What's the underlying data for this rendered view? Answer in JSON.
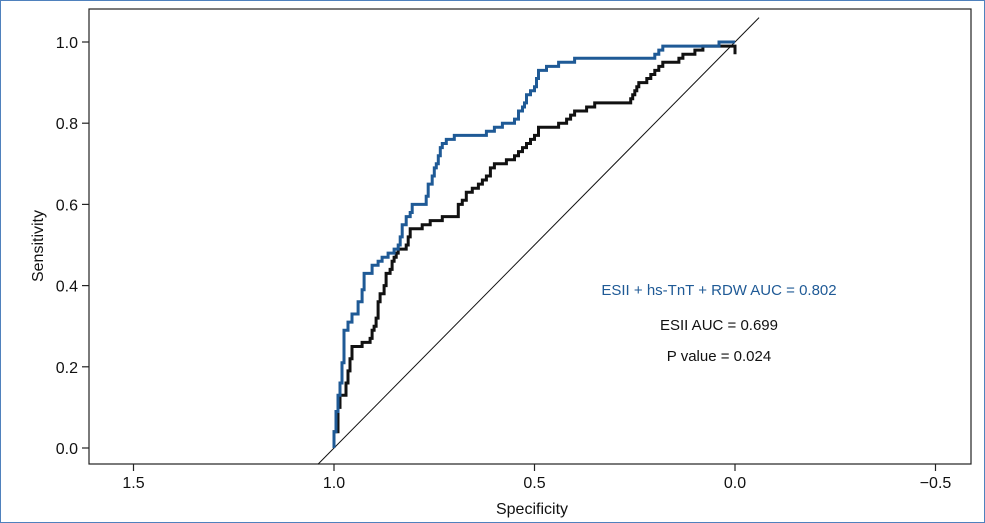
{
  "chart_data": {
    "type": "line",
    "xlabel": "Specificity",
    "ylabel": "Sensitivity",
    "xlim": [
      1.5,
      -0.5
    ],
    "ylim": [
      0.0,
      1.0
    ],
    "x_ticks": [
      1.5,
      1.0,
      0.5,
      0.0,
      -0.5
    ],
    "x_tick_labels": [
      "1.5",
      "1.0",
      "0.5",
      "0.0",
      "−0.5"
    ],
    "y_ticks": [
      0.0,
      0.2,
      0.4,
      0.6,
      0.8,
      1.0
    ],
    "y_tick_labels": [
      "0.0",
      "0.2",
      "0.4",
      "0.6",
      "0.8",
      "1.0"
    ],
    "grid": false,
    "series": [
      {
        "color": "#1f5a96",
        "points": [
          [
            1.0,
            0.0
          ],
          [
            1.0,
            0.04
          ],
          [
            0.995,
            0.04
          ],
          [
            0.995,
            0.09
          ],
          [
            0.99,
            0.09
          ],
          [
            0.99,
            0.13
          ],
          [
            0.985,
            0.13
          ],
          [
            0.985,
            0.16
          ],
          [
            0.98,
            0.16
          ],
          [
            0.98,
            0.21
          ],
          [
            0.975,
            0.21
          ],
          [
            0.975,
            0.29
          ],
          [
            0.965,
            0.29
          ],
          [
            0.965,
            0.31
          ],
          [
            0.955,
            0.31
          ],
          [
            0.955,
            0.33
          ],
          [
            0.94,
            0.33
          ],
          [
            0.94,
            0.36
          ],
          [
            0.93,
            0.36
          ],
          [
            0.93,
            0.39
          ],
          [
            0.925,
            0.39
          ],
          [
            0.925,
            0.43
          ],
          [
            0.905,
            0.43
          ],
          [
            0.905,
            0.45
          ],
          [
            0.89,
            0.45
          ],
          [
            0.89,
            0.46
          ],
          [
            0.88,
            0.46
          ],
          [
            0.88,
            0.47
          ],
          [
            0.865,
            0.47
          ],
          [
            0.865,
            0.48
          ],
          [
            0.85,
            0.48
          ],
          [
            0.85,
            0.49
          ],
          [
            0.84,
            0.49
          ],
          [
            0.84,
            0.5
          ],
          [
            0.835,
            0.5
          ],
          [
            0.835,
            0.52
          ],
          [
            0.83,
            0.52
          ],
          [
            0.83,
            0.55
          ],
          [
            0.82,
            0.55
          ],
          [
            0.82,
            0.57
          ],
          [
            0.81,
            0.57
          ],
          [
            0.81,
            0.58
          ],
          [
            0.805,
            0.58
          ],
          [
            0.805,
            0.6
          ],
          [
            0.77,
            0.6
          ],
          [
            0.77,
            0.62
          ],
          [
            0.765,
            0.62
          ],
          [
            0.765,
            0.65
          ],
          [
            0.755,
            0.65
          ],
          [
            0.755,
            0.67
          ],
          [
            0.75,
            0.67
          ],
          [
            0.75,
            0.69
          ],
          [
            0.745,
            0.69
          ],
          [
            0.745,
            0.7
          ],
          [
            0.74,
            0.7
          ],
          [
            0.74,
            0.72
          ],
          [
            0.735,
            0.72
          ],
          [
            0.735,
            0.74
          ],
          [
            0.73,
            0.74
          ],
          [
            0.73,
            0.75
          ],
          [
            0.72,
            0.75
          ],
          [
            0.72,
            0.76
          ],
          [
            0.7,
            0.76
          ],
          [
            0.7,
            0.77
          ],
          [
            0.62,
            0.77
          ],
          [
            0.62,
            0.78
          ],
          [
            0.6,
            0.78
          ],
          [
            0.6,
            0.79
          ],
          [
            0.58,
            0.79
          ],
          [
            0.58,
            0.8
          ],
          [
            0.55,
            0.8
          ],
          [
            0.55,
            0.81
          ],
          [
            0.54,
            0.81
          ],
          [
            0.54,
            0.83
          ],
          [
            0.53,
            0.83
          ],
          [
            0.53,
            0.84
          ],
          [
            0.525,
            0.84
          ],
          [
            0.525,
            0.85
          ],
          [
            0.52,
            0.85
          ],
          [
            0.52,
            0.87
          ],
          [
            0.51,
            0.87
          ],
          [
            0.51,
            0.88
          ],
          [
            0.5,
            0.88
          ],
          [
            0.5,
            0.89
          ],
          [
            0.495,
            0.89
          ],
          [
            0.495,
            0.91
          ],
          [
            0.49,
            0.91
          ],
          [
            0.49,
            0.93
          ],
          [
            0.47,
            0.93
          ],
          [
            0.47,
            0.94
          ],
          [
            0.44,
            0.94
          ],
          [
            0.44,
            0.95
          ],
          [
            0.4,
            0.95
          ],
          [
            0.4,
            0.96
          ],
          [
            0.2,
            0.96
          ],
          [
            0.2,
            0.97
          ],
          [
            0.19,
            0.97
          ],
          [
            0.19,
            0.98
          ],
          [
            0.18,
            0.98
          ],
          [
            0.18,
            0.99
          ],
          [
            0.04,
            0.99
          ],
          [
            0.04,
            1.0
          ],
          [
            0.0,
            1.0
          ]
        ]
      },
      {
        "color": "#111111",
        "points": [
          [
            1.0,
            0.0
          ],
          [
            1.0,
            0.04
          ],
          [
            0.99,
            0.04
          ],
          [
            0.99,
            0.1
          ],
          [
            0.985,
            0.1
          ],
          [
            0.985,
            0.13
          ],
          [
            0.97,
            0.13
          ],
          [
            0.97,
            0.16
          ],
          [
            0.965,
            0.16
          ],
          [
            0.965,
            0.19
          ],
          [
            0.96,
            0.19
          ],
          [
            0.96,
            0.22
          ],
          [
            0.955,
            0.22
          ],
          [
            0.955,
            0.25
          ],
          [
            0.93,
            0.25
          ],
          [
            0.93,
            0.26
          ],
          [
            0.91,
            0.26
          ],
          [
            0.91,
            0.27
          ],
          [
            0.905,
            0.27
          ],
          [
            0.905,
            0.29
          ],
          [
            0.9,
            0.29
          ],
          [
            0.9,
            0.3
          ],
          [
            0.895,
            0.3
          ],
          [
            0.895,
            0.32
          ],
          [
            0.89,
            0.32
          ],
          [
            0.89,
            0.36
          ],
          [
            0.885,
            0.36
          ],
          [
            0.885,
            0.38
          ],
          [
            0.875,
            0.38
          ],
          [
            0.875,
            0.4
          ],
          [
            0.87,
            0.4
          ],
          [
            0.87,
            0.43
          ],
          [
            0.86,
            0.43
          ],
          [
            0.86,
            0.44
          ],
          [
            0.855,
            0.44
          ],
          [
            0.855,
            0.46
          ],
          [
            0.85,
            0.46
          ],
          [
            0.85,
            0.47
          ],
          [
            0.845,
            0.47
          ],
          [
            0.845,
            0.48
          ],
          [
            0.84,
            0.48
          ],
          [
            0.84,
            0.49
          ],
          [
            0.82,
            0.49
          ],
          [
            0.82,
            0.5
          ],
          [
            0.815,
            0.5
          ],
          [
            0.815,
            0.52
          ],
          [
            0.81,
            0.52
          ],
          [
            0.81,
            0.54
          ],
          [
            0.78,
            0.54
          ],
          [
            0.78,
            0.55
          ],
          [
            0.76,
            0.55
          ],
          [
            0.76,
            0.56
          ],
          [
            0.73,
            0.56
          ],
          [
            0.73,
            0.57
          ],
          [
            0.69,
            0.57
          ],
          [
            0.69,
            0.6
          ],
          [
            0.68,
            0.6
          ],
          [
            0.68,
            0.61
          ],
          [
            0.67,
            0.61
          ],
          [
            0.67,
            0.63
          ],
          [
            0.655,
            0.63
          ],
          [
            0.655,
            0.64
          ],
          [
            0.64,
            0.64
          ],
          [
            0.64,
            0.65
          ],
          [
            0.63,
            0.65
          ],
          [
            0.63,
            0.66
          ],
          [
            0.62,
            0.66
          ],
          [
            0.62,
            0.67
          ],
          [
            0.61,
            0.67
          ],
          [
            0.61,
            0.69
          ],
          [
            0.6,
            0.69
          ],
          [
            0.6,
            0.7
          ],
          [
            0.57,
            0.7
          ],
          [
            0.57,
            0.71
          ],
          [
            0.55,
            0.71
          ],
          [
            0.55,
            0.72
          ],
          [
            0.54,
            0.72
          ],
          [
            0.54,
            0.73
          ],
          [
            0.53,
            0.73
          ],
          [
            0.53,
            0.74
          ],
          [
            0.52,
            0.74
          ],
          [
            0.52,
            0.75
          ],
          [
            0.51,
            0.75
          ],
          [
            0.51,
            0.76
          ],
          [
            0.5,
            0.76
          ],
          [
            0.5,
            0.77
          ],
          [
            0.49,
            0.77
          ],
          [
            0.49,
            0.79
          ],
          [
            0.44,
            0.79
          ],
          [
            0.44,
            0.8
          ],
          [
            0.42,
            0.8
          ],
          [
            0.42,
            0.81
          ],
          [
            0.41,
            0.81
          ],
          [
            0.41,
            0.82
          ],
          [
            0.4,
            0.82
          ],
          [
            0.4,
            0.83
          ],
          [
            0.37,
            0.83
          ],
          [
            0.37,
            0.84
          ],
          [
            0.35,
            0.84
          ],
          [
            0.35,
            0.85
          ],
          [
            0.26,
            0.85
          ],
          [
            0.26,
            0.86
          ],
          [
            0.255,
            0.86
          ],
          [
            0.255,
            0.87
          ],
          [
            0.25,
            0.87
          ],
          [
            0.25,
            0.88
          ],
          [
            0.245,
            0.88
          ],
          [
            0.245,
            0.89
          ],
          [
            0.24,
            0.89
          ],
          [
            0.24,
            0.9
          ],
          [
            0.22,
            0.9
          ],
          [
            0.22,
            0.91
          ],
          [
            0.21,
            0.91
          ],
          [
            0.21,
            0.92
          ],
          [
            0.2,
            0.92
          ],
          [
            0.2,
            0.93
          ],
          [
            0.19,
            0.93
          ],
          [
            0.19,
            0.94
          ],
          [
            0.18,
            0.94
          ],
          [
            0.18,
            0.95
          ],
          [
            0.14,
            0.95
          ],
          [
            0.14,
            0.96
          ],
          [
            0.13,
            0.96
          ],
          [
            0.13,
            0.97
          ],
          [
            0.1,
            0.97
          ],
          [
            0.1,
            0.98
          ],
          [
            0.08,
            0.98
          ],
          [
            0.08,
            0.99
          ],
          [
            0.0,
            0.99
          ],
          [
            0.0,
            0.97
          ]
        ]
      }
    ],
    "reference_line": [
      [
        1.0,
        0.0
      ],
      [
        0.0,
        1.0
      ]
    ],
    "annotations": [
      {
        "text": "ESII + hs-TnT + RDW AUC = 0.802",
        "color": "#1f5a96"
      },
      {
        "text": "ESII AUC = 0.699",
        "color": "#111111"
      },
      {
        "text": "P value = 0.024",
        "color": "#111111"
      }
    ]
  }
}
